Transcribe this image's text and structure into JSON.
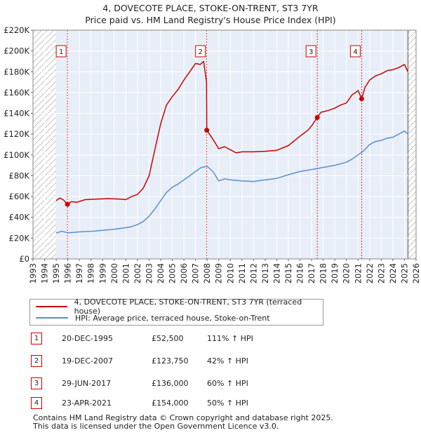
{
  "header": {
    "title": "4, DOVECOTE PLACE, STOKE-ON-TRENT, ST3 7YR",
    "subtitle": "Price paid vs. HM Land Registry's House Price Index (HPI)"
  },
  "colors": {
    "property": "#cc0000",
    "hpi": "#5b8fcc",
    "shade": "#e8eef7",
    "hatch": "#b0b0b0",
    "grid": "#c8c8c8"
  },
  "chart_data": {
    "type": "line",
    "title": "4, DOVECOTE PLACE, STOKE-ON-TRENT, ST3 7YR",
    "xlabel": "",
    "ylabel": "",
    "xlim": [
      1993,
      2026
    ],
    "ylim": [
      0,
      220000
    ],
    "y_ticks": [
      0,
      20000,
      40000,
      60000,
      80000,
      100000,
      120000,
      140000,
      160000,
      180000,
      200000,
      220000
    ],
    "y_tick_labels": [
      "£0",
      "£20K",
      "£40K",
      "£60K",
      "£80K",
      "£100K",
      "£120K",
      "£140K",
      "£160K",
      "£180K",
      "£200K",
      "£220K"
    ],
    "x_ticks": [
      1993,
      1994,
      1995,
      1996,
      1997,
      1998,
      1999,
      2000,
      2001,
      2002,
      2003,
      2004,
      2005,
      2006,
      2007,
      2008,
      2009,
      2010,
      2011,
      2012,
      2013,
      2014,
      2015,
      2016,
      2017,
      2018,
      2019,
      2020,
      2021,
      2022,
      2023,
      2024,
      2025,
      2026
    ],
    "x_tick_labels": [
      "1993",
      "1994",
      "1995",
      "1996",
      "1997",
      "1998",
      "1999",
      "2000",
      "2001",
      "2002",
      "2003",
      "2004",
      "2005",
      "2006",
      "2007",
      "2008",
      "2009",
      "2010",
      "2011",
      "2012",
      "2013",
      "2014",
      "2015",
      "2016",
      "2017",
      "2018",
      "2019",
      "2020",
      "2021",
      "2022",
      "2023",
      "2024",
      "2025",
      "2026"
    ],
    "data_start": 1995.0,
    "data_end": 2025.3,
    "series": [
      {
        "name": "4, DOVECOTE PLACE, STOKE-ON-TRENT, ST3 7YR (terraced house)",
        "x": [
          1995.0,
          1995.3,
          1995.6,
          1995.97,
          1996.3,
          1996.8,
          1997.5,
          1998.5,
          1999.5,
          2000.5,
          2001.0,
          2001.5,
          2002.0,
          2002.5,
          2003.0,
          2003.5,
          2004.0,
          2004.5,
          2005.0,
          2005.5,
          2006.0,
          2006.5,
          2007.0,
          2007.4,
          2007.7,
          2007.95,
          2007.97,
          2008.2,
          2008.5,
          2009.0,
          2009.5,
          2010.0,
          2010.5,
          2011.0,
          2012.0,
          2013.0,
          2014.0,
          2015.0,
          2016.0,
          2016.7,
          2017.0,
          2017.49,
          2017.8,
          2018.5,
          2019.0,
          2019.5,
          2020.0,
          2020.5,
          2020.8,
          2021.0,
          2021.31,
          2021.6,
          2022.0,
          2022.5,
          2023.0,
          2023.5,
          2024.0,
          2024.5,
          2025.0,
          2025.3
        ],
        "values": [
          56000,
          58500,
          57000,
          52500,
          55000,
          54500,
          57000,
          57500,
          58000,
          57500,
          57000,
          60000,
          62000,
          68000,
          80000,
          105000,
          130000,
          148000,
          156000,
          163000,
          172000,
          180000,
          188000,
          187000,
          190000,
          170000,
          123750,
          120000,
          115000,
          106000,
          108000,
          105000,
          102000,
          103000,
          103000,
          103500,
          104500,
          109000,
          118000,
          124000,
          128000,
          136000,
          141000,
          143000,
          145000,
          148000,
          150000,
          158000,
          160000,
          162000,
          154000,
          165000,
          172000,
          176000,
          178000,
          181000,
          182000,
          184000,
          187000,
          180000
        ]
      },
      {
        "name": "HPI: Average price, terraced house, Stoke-on-Trent",
        "x": [
          1995.0,
          1995.5,
          1996.0,
          1996.5,
          1997.0,
          1998.0,
          1999.0,
          2000.0,
          2001.0,
          2001.5,
          2002.0,
          2002.5,
          2003.0,
          2003.5,
          2004.0,
          2004.5,
          2005.0,
          2005.5,
          2006.0,
          2006.5,
          2007.0,
          2007.5,
          2008.0,
          2008.5,
          2009.0,
          2009.5,
          2010.0,
          2010.5,
          2011.0,
          2012.0,
          2013.0,
          2014.0,
          2015.0,
          2016.0,
          2017.0,
          2018.0,
          2019.0,
          2020.0,
          2020.5,
          2021.0,
          2021.5,
          2022.0,
          2022.5,
          2023.0,
          2023.5,
          2024.0,
          2024.5,
          2025.0,
          2025.3
        ],
        "values": [
          25000,
          26500,
          25200,
          25500,
          26000,
          26500,
          27500,
          28500,
          30000,
          31000,
          33000,
          36000,
          41000,
          48000,
          56000,
          64000,
          69000,
          72000,
          76000,
          80000,
          84000,
          88000,
          89000,
          84000,
          75000,
          77000,
          76000,
          75500,
          75000,
          74500,
          76000,
          77500,
          81000,
          84000,
          86000,
          88000,
          90000,
          93000,
          96000,
          100000,
          104000,
          110000,
          113000,
          114000,
          116000,
          117000,
          120000,
          123000,
          120000
        ]
      }
    ],
    "sales": [
      {
        "label": "1",
        "x": 1995.97,
        "y": 52500
      },
      {
        "label": "2",
        "x": 2007.97,
        "y": 123750
      },
      {
        "label": "3",
        "x": 2017.49,
        "y": 136000
      },
      {
        "label": "4",
        "x": 2021.31,
        "y": 154000
      }
    ],
    "legend_position": "bottom"
  },
  "legend": {
    "items": [
      {
        "label": "4, DOVECOTE PLACE, STOKE-ON-TRENT, ST3 7YR (terraced house)"
      },
      {
        "label": "HPI: Average price, terraced house, Stoke-on-Trent"
      }
    ]
  },
  "sales_table": [
    {
      "num": "1",
      "date": "20-DEC-1995",
      "price": "£52,500",
      "hpi": "111% ↑ HPI"
    },
    {
      "num": "2",
      "date": "19-DEC-2007",
      "price": "£123,750",
      "hpi": "42% ↑ HPI"
    },
    {
      "num": "3",
      "date": "29-JUN-2017",
      "price": "£136,000",
      "hpi": "60% ↑ HPI"
    },
    {
      "num": "4",
      "date": "23-APR-2021",
      "price": "£154,000",
      "hpi": "50% ↑ HPI"
    }
  ],
  "footer": {
    "line1": "Contains HM Land Registry data © Crown copyright and database right 2025.",
    "line2": "This data is licensed under the Open Government Licence v3.0."
  }
}
